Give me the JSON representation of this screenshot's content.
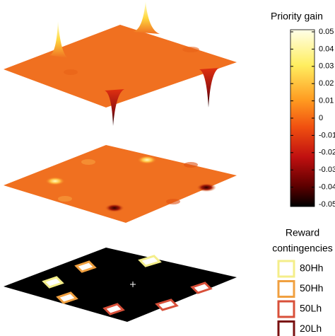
{
  "colorbar": {
    "title": "Priority gain",
    "lim": [
      -0.05,
      0.05
    ],
    "ticks": [
      0.05,
      0.04,
      0.03,
      0.02,
      0.01,
      0,
      -0.01,
      -0.02,
      -0.03,
      -0.04,
      -0.05
    ]
  },
  "legend": {
    "title_lines": [
      "Reward",
      "contingencies"
    ],
    "entries": [
      {
        "label": "80Hh",
        "color": "#f4ee8a"
      },
      {
        "label": "50Hh",
        "color": "#f0a040"
      },
      {
        "label": "50Lh",
        "color": "#d8503a"
      },
      {
        "label": "20Lh",
        "color": "#7a1010"
      }
    ]
  }
}
